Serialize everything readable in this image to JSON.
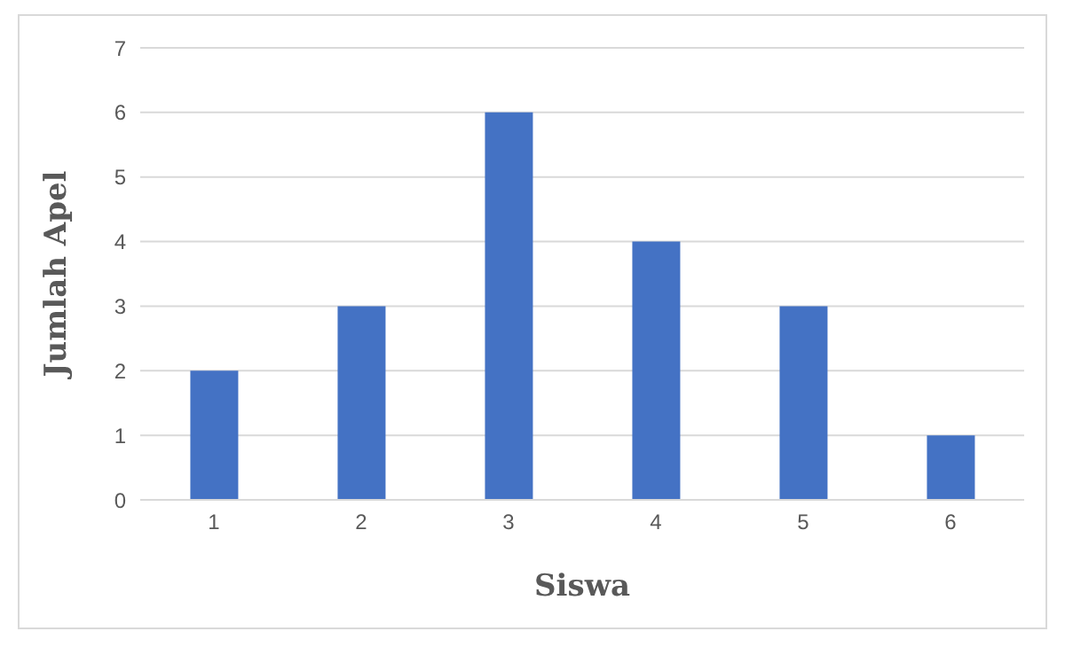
{
  "chart_data": {
    "type": "bar",
    "xlabel": "Siswa",
    "ylabel": "Jumlah Apel",
    "categories": [
      "1",
      "2",
      "3",
      "4",
      "5",
      "6"
    ],
    "values": [
      2,
      3,
      6,
      4,
      3,
      1
    ],
    "color": "#4472c4",
    "ylim": [
      0,
      7
    ],
    "yticks": [
      0,
      1,
      2,
      3,
      4,
      5,
      6,
      7
    ],
    "grid": "y"
  }
}
